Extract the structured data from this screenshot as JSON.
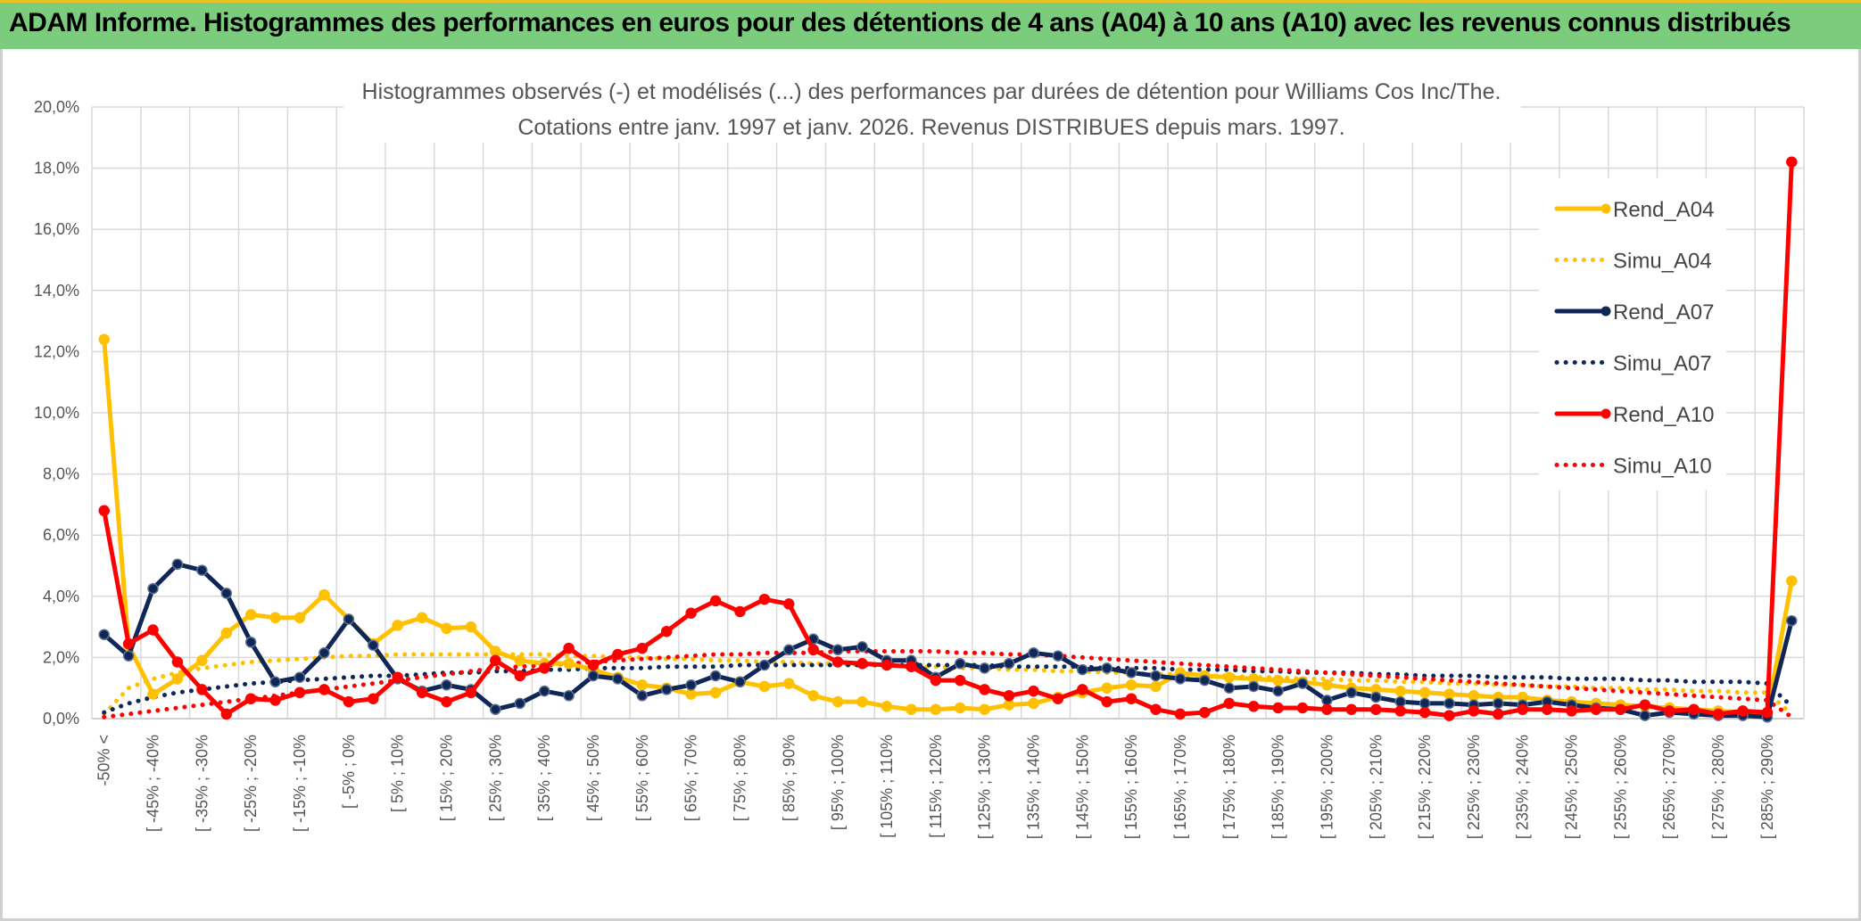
{
  "page_title": "ADAM Informe. Histogrammes des performances en euros pour des détentions de 4 ans (A04) à 10 ans (A10) avec les revenus connus distribués",
  "colors": {
    "title_bg": "#7ccc7e",
    "gold": "#ffc000",
    "navy": "#0f2757",
    "red": "#ff0000",
    "grid": "#d9d9d9"
  },
  "chart_data": {
    "type": "line",
    "title": "Histogrammes observés (-) et modélisés (...) des performances par durées de détention pour Williams Cos Inc/The.",
    "subtitle": "Cotations entre janv. 1997 et janv. 2026. Revenus DISTRIBUES depuis mars. 1997.",
    "ylim": [
      0,
      20
    ],
    "yticks": [
      "0,0%",
      "2,0%",
      "4,0%",
      "6,0%",
      "8,0%",
      "10,0%",
      "12,0%",
      "14,0%",
      "16,0%",
      "18,0%",
      "20,0%"
    ],
    "legend_position": "right",
    "x_labels": [
      "-50% <",
      "[ -45% ; -40%",
      "[ -35% ; -30%",
      "[ -25% ; -20%",
      "[ -15% ; -10%",
      "[ -5% ; 0%",
      "[ 5% ; 10%",
      "[ 15% ; 20%",
      "[ 25% ; 30%",
      "[ 35% ; 40%",
      "[ 45% ; 50%",
      "[ 55% ; 60%",
      "[ 65% ; 70%",
      "[ 75% ; 80%",
      "[ 85% ; 90%",
      "[ 95% ; 100%",
      "[ 105% ; 110%",
      "[ 115% ; 120%",
      "[ 125% ; 130%",
      "[ 135% ; 140%",
      "[ 145% ; 150%",
      "[ 155% ; 160%",
      "[ 165% ; 170%",
      "[ 175% ; 180%",
      "[ 185% ; 190%",
      "[ 195% ; 200%",
      "[ 205% ; 210%",
      "[ 215% ; 220%",
      "[ 225% ; 230%",
      "[ 235% ; 240%",
      "[ 245% ; 250%",
      "[ 255% ; 260%",
      "[ 265% ; 270%",
      "[ 275% ; 280%",
      "[ 285% ; 290%"
    ],
    "n_points": 70,
    "series": [
      {
        "name": "Rend_A04",
        "style": "solid",
        "color": "#ffc000",
        "values": [
          12.4,
          2.4,
          0.8,
          1.3,
          1.9,
          2.8,
          3.4,
          3.3,
          3.3,
          4.05,
          3.25,
          2.45,
          3.05,
          3.3,
          2.95,
          3.0,
          2.2,
          1.9,
          1.8,
          1.8,
          1.6,
          1.35,
          1.1,
          1.0,
          0.8,
          0.85,
          1.2,
          1.05,
          1.15,
          0.75,
          0.55,
          0.55,
          0.4,
          0.3,
          0.3,
          0.35,
          0.3,
          0.45,
          0.5,
          0.7,
          0.85,
          1.0,
          1.1,
          1.05,
          1.5,
          1.4,
          1.35,
          1.3,
          1.25,
          1.2,
          1.1,
          1.0,
          0.95,
          0.9,
          0.85,
          0.8,
          0.75,
          0.7,
          0.7,
          0.6,
          0.55,
          0.5,
          0.45,
          0.4,
          0.35,
          0.3,
          0.25,
          0.2,
          0.15,
          4.5
        ]
      },
      {
        "name": "Simu_A04",
        "style": "dotted",
        "color": "#ffc000",
        "values": [
          0.15,
          1.0,
          1.3,
          1.5,
          1.65,
          1.75,
          1.85,
          1.9,
          1.95,
          2.0,
          2.05,
          2.05,
          2.1,
          2.1,
          2.1,
          2.1,
          2.1,
          2.1,
          2.1,
          2.05,
          2.05,
          2.0,
          2.0,
          1.95,
          1.95,
          1.9,
          1.9,
          1.85,
          1.85,
          1.8,
          1.8,
          1.75,
          1.75,
          1.7,
          1.7,
          1.65,
          1.65,
          1.6,
          1.6,
          1.55,
          1.55,
          1.5,
          1.5,
          1.45,
          1.45,
          1.4,
          1.4,
          1.35,
          1.35,
          1.3,
          1.3,
          1.25,
          1.25,
          1.2,
          1.2,
          1.15,
          1.15,
          1.1,
          1.1,
          1.05,
          1.05,
          1.0,
          1.0,
          0.95,
          0.95,
          0.9,
          0.9,
          0.85,
          0.85,
          0.15
        ]
      },
      {
        "name": "Rend_A07",
        "style": "solid",
        "color": "#0f2757",
        "values": [
          2.75,
          2.05,
          4.25,
          5.05,
          4.85,
          4.1,
          2.5,
          1.2,
          1.35,
          2.15,
          3.25,
          2.4,
          1.3,
          0.9,
          1.1,
          0.95,
          0.3,
          0.5,
          0.9,
          0.75,
          1.4,
          1.3,
          0.75,
          0.95,
          1.1,
          1.4,
          1.2,
          1.75,
          2.25,
          2.6,
          2.25,
          2.35,
          1.9,
          1.9,
          1.35,
          1.8,
          1.65,
          1.8,
          2.15,
          2.05,
          1.6,
          1.65,
          1.5,
          1.4,
          1.3,
          1.25,
          1.0,
          1.05,
          0.9,
          1.15,
          0.6,
          0.85,
          0.7,
          0.55,
          0.5,
          0.5,
          0.45,
          0.5,
          0.45,
          0.55,
          0.45,
          0.35,
          0.3,
          0.1,
          0.2,
          0.15,
          0.1,
          0.1,
          0.05,
          3.2
        ]
      },
      {
        "name": "Simu_A07",
        "style": "dotted",
        "color": "#0f2757",
        "values": [
          0.2,
          0.5,
          0.7,
          0.85,
          0.95,
          1.05,
          1.15,
          1.2,
          1.25,
          1.3,
          1.35,
          1.4,
          1.4,
          1.45,
          1.5,
          1.5,
          1.55,
          1.55,
          1.6,
          1.6,
          1.65,
          1.65,
          1.65,
          1.7,
          1.7,
          1.7,
          1.75,
          1.75,
          1.75,
          1.75,
          1.75,
          1.75,
          1.75,
          1.75,
          1.75,
          1.75,
          1.75,
          1.7,
          1.7,
          1.7,
          1.7,
          1.65,
          1.65,
          1.65,
          1.6,
          1.6,
          1.6,
          1.55,
          1.55,
          1.5,
          1.5,
          1.5,
          1.45,
          1.45,
          1.4,
          1.4,
          1.4,
          1.35,
          1.35,
          1.35,
          1.3,
          1.3,
          1.3,
          1.25,
          1.25,
          1.2,
          1.2,
          1.2,
          1.15,
          0.4
        ]
      },
      {
        "name": "Rend_A10",
        "style": "solid",
        "color": "#ff0000",
        "values": [
          6.8,
          2.45,
          2.9,
          1.85,
          0.95,
          0.15,
          0.65,
          0.6,
          0.85,
          0.95,
          0.55,
          0.65,
          1.35,
          0.85,
          0.55,
          0.85,
          1.9,
          1.4,
          1.65,
          2.3,
          1.75,
          2.1,
          2.3,
          2.85,
          3.45,
          3.85,
          3.5,
          3.9,
          3.75,
          2.25,
          1.85,
          1.8,
          1.75,
          1.7,
          1.25,
          1.25,
          0.95,
          0.75,
          0.9,
          0.65,
          0.95,
          0.55,
          0.65,
          0.3,
          0.15,
          0.2,
          0.5,
          0.4,
          0.35,
          0.35,
          0.3,
          0.3,
          0.3,
          0.25,
          0.2,
          0.1,
          0.25,
          0.15,
          0.3,
          0.3,
          0.25,
          0.3,
          0.3,
          0.45,
          0.25,
          0.3,
          0.15,
          0.25,
          0.2,
          18.2
        ]
      },
      {
        "name": "Simu_A10",
        "style": "dotted",
        "color": "#ff0000",
        "values": [
          0.05,
          0.15,
          0.25,
          0.35,
          0.45,
          0.55,
          0.65,
          0.75,
          0.85,
          0.95,
          1.05,
          1.15,
          1.25,
          1.35,
          1.45,
          1.55,
          1.65,
          1.7,
          1.75,
          1.8,
          1.85,
          1.9,
          1.95,
          2.0,
          2.05,
          2.1,
          2.1,
          2.15,
          2.15,
          2.15,
          2.2,
          2.2,
          2.2,
          2.2,
          2.2,
          2.15,
          2.15,
          2.1,
          2.1,
          2.05,
          2.0,
          1.95,
          1.9,
          1.85,
          1.8,
          1.75,
          1.7,
          1.65,
          1.6,
          1.55,
          1.5,
          1.45,
          1.4,
          1.35,
          1.3,
          1.25,
          1.2,
          1.15,
          1.1,
          1.05,
          1.0,
          0.95,
          0.9,
          0.85,
          0.8,
          0.75,
          0.7,
          0.65,
          0.6,
          0.05
        ]
      }
    ]
  }
}
